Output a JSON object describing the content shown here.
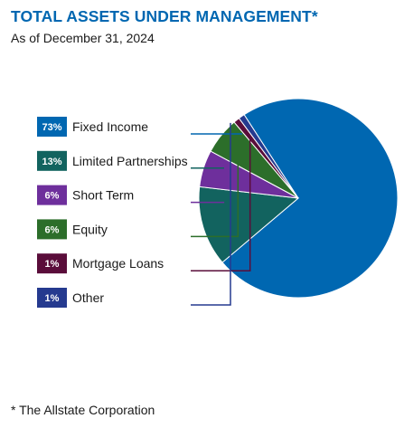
{
  "header": {
    "title": "TOTAL ASSETS UNDER MANAGEMENT*",
    "subtitle": "As of December 31, 2024"
  },
  "footnote": "* The Allstate Corporation",
  "chart_data": {
    "type": "pie",
    "title": "TOTAL ASSETS UNDER MANAGEMENT*",
    "subtitle": "As of December 31, 2024",
    "legend_position": "left",
    "slices": [
      {
        "label": "Fixed Income",
        "value": 73,
        "pct_label": "73%",
        "color": "#0067b1"
      },
      {
        "label": "Limited Partnerships",
        "value": 13,
        "pct_label": "13%",
        "color": "#12635f"
      },
      {
        "label": "Short Term",
        "value": 6,
        "pct_label": "6%",
        "color": "#6e2f9c"
      },
      {
        "label": "Equity",
        "value": 6,
        "pct_label": "6%",
        "color": "#2c6e2a"
      },
      {
        "label": "Mortgage Loans",
        "value": 1,
        "pct_label": "1%",
        "color": "#5a0d3a"
      },
      {
        "label": "Other",
        "value": 1,
        "pct_label": "1%",
        "color": "#253a8f"
      }
    ]
  }
}
